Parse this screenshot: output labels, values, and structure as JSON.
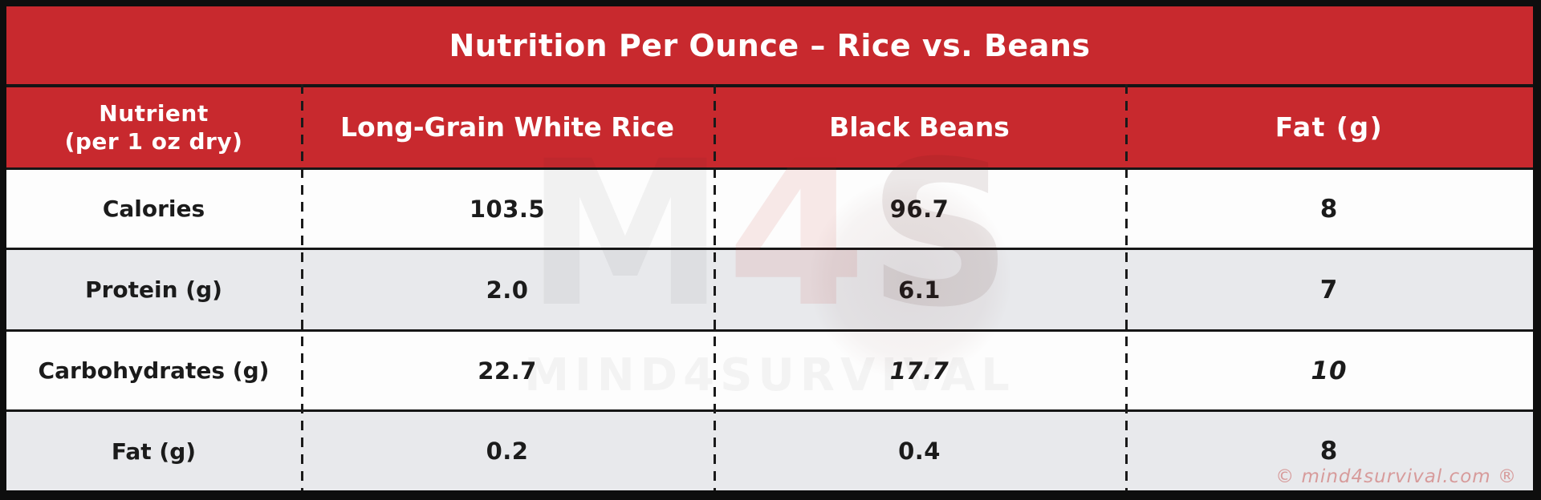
{
  "title": "Nutrition Per Ounce – Rice vs. Beans",
  "table": {
    "headers": [
      {
        "label": "Nutrient",
        "sub": "(per 1 oz dry)"
      },
      {
        "label": "Long-Grain White Rice"
      },
      {
        "label": "Black Beans"
      },
      {
        "label": "Fat (g)"
      }
    ],
    "rows": [
      {
        "label": "Calories",
        "values": [
          "103.5",
          "96.7",
          "8"
        ]
      },
      {
        "label": "Protein (g)",
        "values": [
          "2.0",
          "6.1",
          "7"
        ]
      },
      {
        "label": "Carbohydrates (g)",
        "values": [
          "22.7",
          "17.7",
          "10"
        ]
      },
      {
        "label": "Fat (g)",
        "values": [
          "0.2",
          "0.4",
          "8"
        ]
      }
    ]
  },
  "chart_data": {
    "type": "table",
    "title": "Nutrition Per Ounce – Rice vs. Beans",
    "columns": [
      "Nutrient (per 1 oz dry)",
      "Long-Grain White Rice",
      "Black Beans",
      "Fat (g)"
    ],
    "rows": [
      [
        "Calories",
        103.5,
        96.7,
        8
      ],
      [
        "Protein (g)",
        2.0,
        6.1,
        7
      ],
      [
        "Carbohydrates (g)",
        22.7,
        17.7,
        10
      ],
      [
        "Fat (g)",
        0.2,
        0.4,
        8
      ]
    ]
  },
  "watermark": {
    "logo_m": "M",
    "logo_4": "4",
    "logo_s": "S",
    "text": "MIND4SURVIVAL"
  },
  "footer": {
    "copyright": "© mind4survival.com ®"
  },
  "colors": {
    "header_red": "#c8292e",
    "row_alt_gray": "#e8e9ec",
    "border_black": "#0e0e0e",
    "copyright_pink": "#d79b9b",
    "text_dark": "#1b1b1b",
    "header_text_white": "#ffffff"
  }
}
